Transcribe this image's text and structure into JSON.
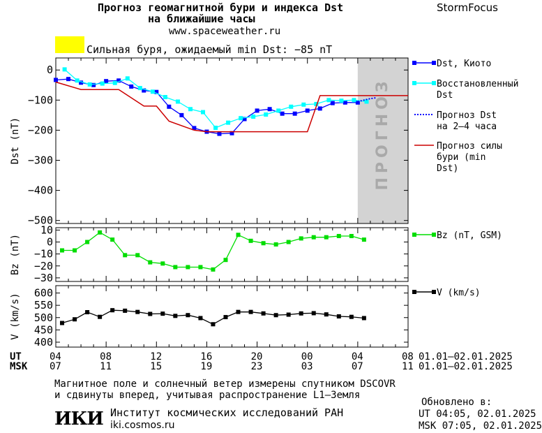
{
  "header": {
    "title_line1": "Прогноз геомагнитной бури и индекса Dst",
    "title_line2": "на ближайшие часы",
    "url": "www.spaceweather.ru",
    "brand": "StormFocus"
  },
  "alert": {
    "text": "Сильная буря, ожидаемый min Dst: −85 nT",
    "color": "#ffff00"
  },
  "footer": {
    "note_line1": "Магнитное поле и солнечный ветер измерены спутником DSCOVR",
    "note_line2": "и сдвинуты вперед, учитывая распространение L1–Земля",
    "updated_label": "Обновлено в:",
    "updated_ut": "UT   04:05, 02.01.2025",
    "updated_msk": "MSK 07:05, 02.01.2025",
    "institute": "Институт космических исследований РАН",
    "institute_url": "iki.cosmos.ru",
    "logo_text": "ИКИ"
  },
  "chart_data": [
    {
      "type": "line",
      "id": "dst",
      "ylabel": "Dst (nT)",
      "ylim": [
        -510,
        40
      ],
      "yticks": [
        0,
        -100,
        -200,
        -300,
        -400,
        -500
      ],
      "forecast_label": "ПРОГНОЗ",
      "forecast_range_hours": [
        24,
        28
      ],
      "x_hours_range": [
        0,
        28
      ],
      "series": [
        {
          "name": "Dst, Киото",
          "color": "#0000ff",
          "marker": "square",
          "filled": true,
          "x": [
            0,
            1,
            2,
            3,
            4,
            5,
            6,
            7,
            8,
            9,
            10,
            11,
            12,
            13,
            14,
            15,
            16,
            17,
            18,
            19,
            20,
            21,
            22,
            23,
            24
          ],
          "y": [
            -33,
            -30,
            -42,
            -50,
            -37,
            -35,
            -55,
            -68,
            -73,
            -122,
            -150,
            -193,
            -205,
            -212,
            -210,
            -163,
            -135,
            -130,
            -145,
            -145,
            -135,
            -128,
            -110,
            -108,
            -108
          ]
        },
        {
          "name": "Восстановленный Dst",
          "color": "#00ffff",
          "marker": "square",
          "filled": true,
          "x": [
            0.7,
            1.7,
            2.7,
            3.7,
            4.7,
            5.7,
            6.7,
            7.7,
            8.7,
            9.7,
            10.7,
            11.7,
            12.7,
            13.7,
            14.7,
            15.7,
            16.7,
            17.7,
            18.7,
            19.7,
            20.7,
            21.7,
            22.7,
            23.7,
            24.7
          ],
          "y": [
            2,
            -35,
            -48,
            -45,
            -43,
            -28,
            -60,
            -72,
            -90,
            -105,
            -130,
            -140,
            -192,
            -175,
            -160,
            -155,
            -148,
            -135,
            -122,
            -115,
            -113,
            -100,
            -102,
            -100,
            -105
          ]
        },
        {
          "name": "Прогноз Dst на 2–4 часа",
          "color": "#0000ff",
          "dashed": true,
          "x": [
            24,
            24.5,
            25,
            25.5
          ],
          "y": [
            -105,
            -100,
            -95,
            -92
          ]
        },
        {
          "name": "Прогноз силы бури (min Dst)",
          "color": "#cc0000",
          "step": true,
          "x": [
            0,
            2,
            5,
            7,
            8,
            9,
            11,
            12,
            20,
            21,
            28
          ],
          "y": [
            -40,
            -65,
            -65,
            -120,
            -120,
            -170,
            -200,
            -205,
            -205,
            -85,
            -85
          ]
        }
      ]
    },
    {
      "type": "line",
      "id": "bz",
      "ylabel": "Bz (nT)",
      "ylim": [
        -33,
        12
      ],
      "yticks": [
        10,
        0,
        -10,
        -20,
        -30
      ],
      "series": [
        {
          "name": "Bz (nT, GSM)",
          "color": "#00dd00",
          "marker": "square",
          "filled": true,
          "x": [
            0.5,
            1.5,
            2.5,
            3.5,
            4.5,
            5.5,
            6.5,
            7.5,
            8.5,
            9.5,
            10.5,
            11.5,
            12.5,
            13.5,
            14.5,
            15.5,
            16.5,
            17.5,
            18.5,
            19.5,
            20.5,
            21.5,
            22.5,
            23.5,
            24.5
          ],
          "y": [
            -7,
            -7,
            0,
            8,
            2,
            -11,
            -11,
            -17,
            -18,
            -21,
            -21,
            -21,
            -23,
            -15,
            6,
            1,
            -1,
            -2,
            0,
            3,
            4,
            4,
            5,
            5,
            2
          ]
        }
      ]
    },
    {
      "type": "line",
      "id": "v",
      "ylabel": "V (km/s)",
      "ylim": [
        380,
        630
      ],
      "yticks": [
        600,
        550,
        500,
        450,
        400
      ],
      "series": [
        {
          "name": "V (km/s)",
          "color": "#000000",
          "marker": "square",
          "filled": true,
          "x": [
            0.5,
            1.5,
            2.5,
            3.5,
            4.5,
            5.5,
            6.5,
            7.5,
            8.5,
            9.5,
            10.5,
            11.5,
            12.5,
            13.5,
            14.5,
            15.5,
            16.5,
            17.5,
            18.5,
            19.5,
            20.5,
            21.5,
            22.5,
            23.5,
            24.5
          ],
          "y": [
            478,
            493,
            522,
            503,
            530,
            528,
            523,
            515,
            516,
            507,
            510,
            498,
            473,
            502,
            523,
            523,
            517,
            510,
            512,
            517,
            518,
            513,
            505,
            503,
            498
          ]
        }
      ]
    }
  ],
  "x_axis": {
    "ut_label": "UT",
    "msk_label": "MSK",
    "ut_ticks": [
      "04",
      "08",
      "12",
      "16",
      "20",
      "00",
      "04",
      "08"
    ],
    "msk_ticks": [
      "07",
      "11",
      "15",
      "19",
      "23",
      "03",
      "07",
      "11"
    ],
    "ut_range": "01.01–02.01.2025",
    "msk_range": "01.01–02.01.2025"
  },
  "colors": {
    "forecast_zone": "#d3d3d3",
    "forecast_text": "#a9a9a9",
    "frame": "#000000"
  }
}
